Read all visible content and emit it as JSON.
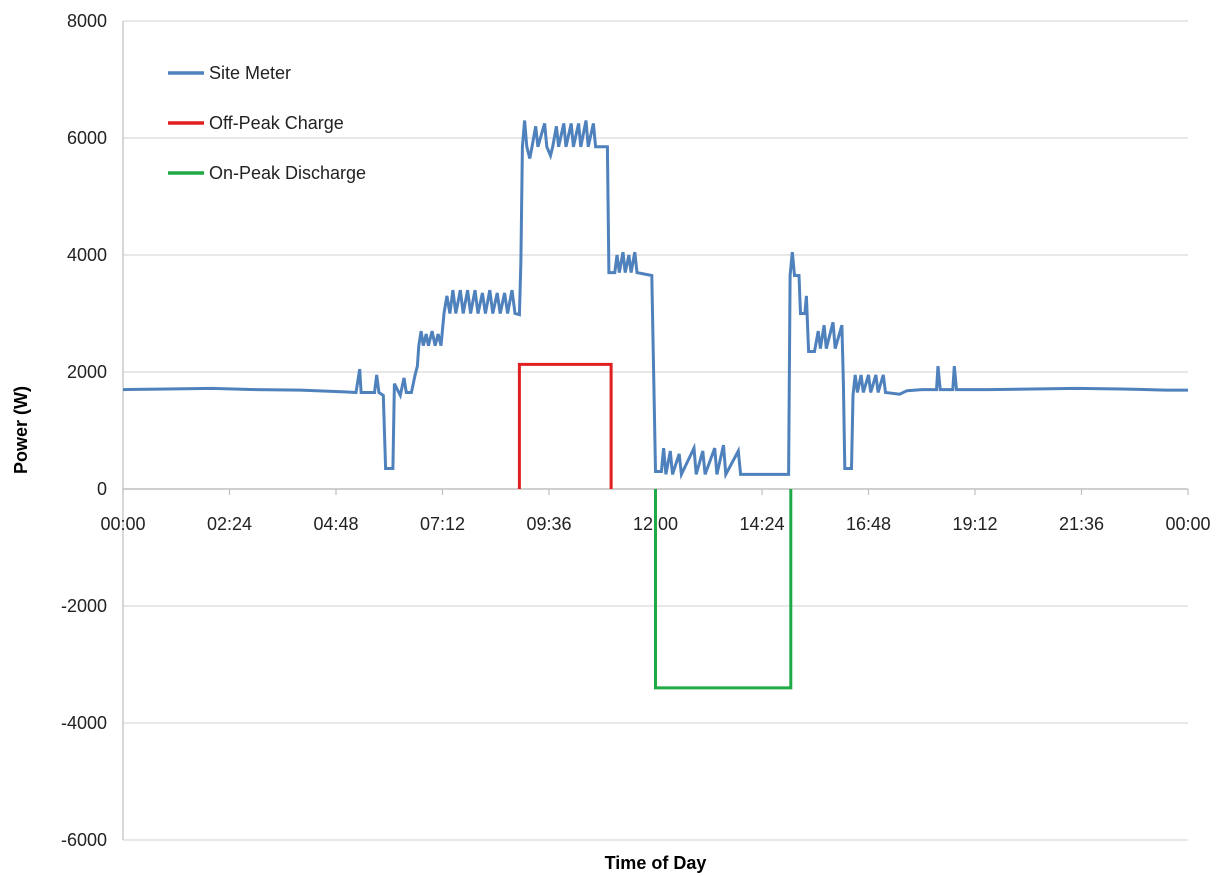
{
  "chart_data": {
    "type": "line",
    "title": "",
    "xlabel": "Time of Day",
    "ylabel": "Power (W)",
    "xlim": [
      "00:00",
      "24:00"
    ],
    "ylim": [
      -6000,
      8000
    ],
    "x_ticks": [
      "00:00",
      "02:24",
      "04:48",
      "07:12",
      "09:36",
      "12:00",
      "14:24",
      "16:48",
      "19:12",
      "21:36",
      "00:00"
    ],
    "y_ticks": [
      8000,
      6000,
      4000,
      2000,
      0,
      -2000,
      -4000,
      -6000
    ],
    "grid": true,
    "legend": "top-left",
    "series": [
      {
        "name": "Site Meter",
        "color": "#4f81bd",
        "points": [
          [
            "00:00",
            1700
          ],
          [
            "01:00",
            1710
          ],
          [
            "02:00",
            1720
          ],
          [
            "03:00",
            1700
          ],
          [
            "04:00",
            1690
          ],
          [
            "05:00",
            1660
          ],
          [
            "05:15",
            1650
          ],
          [
            "05:20",
            2050
          ],
          [
            "05:22",
            1650
          ],
          [
            "05:40",
            1650
          ],
          [
            "05:43",
            1950
          ],
          [
            "05:46",
            1650
          ],
          [
            "05:52",
            1600
          ],
          [
            "05:55",
            350
          ],
          [
            "06:05",
            350
          ],
          [
            "06:07",
            1800
          ],
          [
            "06:15",
            1600
          ],
          [
            "06:20",
            1900
          ],
          [
            "06:23",
            1650
          ],
          [
            "06:30",
            1650
          ],
          [
            "06:35",
            1950
          ],
          [
            "06:38",
            2100
          ],
          [
            "06:40",
            2450
          ],
          [
            "06:43",
            2700
          ],
          [
            "06:46",
            2450
          ],
          [
            "06:50",
            2650
          ],
          [
            "06:53",
            2450
          ],
          [
            "06:58",
            2700
          ],
          [
            "07:02",
            2450
          ],
          [
            "07:06",
            2650
          ],
          [
            "07:10",
            2450
          ],
          [
            "07:14",
            3000
          ],
          [
            "07:18",
            3300
          ],
          [
            "07:22",
            3000
          ],
          [
            "07:26",
            3400
          ],
          [
            "07:30",
            3000
          ],
          [
            "07:36",
            3400
          ],
          [
            "07:40",
            3000
          ],
          [
            "07:46",
            3400
          ],
          [
            "07:50",
            3000
          ],
          [
            "07:56",
            3400
          ],
          [
            "08:00",
            3000
          ],
          [
            "08:06",
            3350
          ],
          [
            "08:10",
            3000
          ],
          [
            "08:16",
            3400
          ],
          [
            "08:20",
            3000
          ],
          [
            "08:26",
            3350
          ],
          [
            "08:30",
            3000
          ],
          [
            "08:36",
            3350
          ],
          [
            "08:40",
            3000
          ],
          [
            "08:46",
            3400
          ],
          [
            "08:50",
            3000
          ],
          [
            "08:56",
            2980
          ],
          [
            "08:58",
            3900
          ],
          [
            "09:00",
            5850
          ],
          [
            "09:03",
            6300
          ],
          [
            "09:06",
            5850
          ],
          [
            "09:10",
            5650
          ],
          [
            "09:13",
            5850
          ],
          [
            "09:18",
            6200
          ],
          [
            "09:21",
            5850
          ],
          [
            "09:30",
            6250
          ],
          [
            "09:33",
            5850
          ],
          [
            "09:38",
            5700
          ],
          [
            "09:41",
            5850
          ],
          [
            "09:46",
            6200
          ],
          [
            "09:49",
            5850
          ],
          [
            "09:56",
            6250
          ],
          [
            "09:59",
            5850
          ],
          [
            "10:06",
            6250
          ],
          [
            "10:09",
            5850
          ],
          [
            "10:16",
            6250
          ],
          [
            "10:19",
            5850
          ],
          [
            "10:26",
            6300
          ],
          [
            "10:29",
            5850
          ],
          [
            "10:36",
            6250
          ],
          [
            "10:39",
            5850
          ],
          [
            "10:55",
            5850
          ],
          [
            "10:57",
            3700
          ],
          [
            "11:05",
            3700
          ],
          [
            "11:08",
            4000
          ],
          [
            "11:11",
            3700
          ],
          [
            "11:16",
            4050
          ],
          [
            "11:19",
            3700
          ],
          [
            "11:24",
            4000
          ],
          [
            "11:27",
            3700
          ],
          [
            "11:32",
            4050
          ],
          [
            "11:35",
            3700
          ],
          [
            "11:55",
            3650
          ],
          [
            "12:00",
            300
          ],
          [
            "12:08",
            300
          ],
          [
            "12:11",
            700
          ],
          [
            "12:14",
            250
          ],
          [
            "12:20",
            650
          ],
          [
            "12:23",
            250
          ],
          [
            "12:32",
            600
          ],
          [
            "12:35",
            250
          ],
          [
            "12:52",
            700
          ],
          [
            "12:55",
            250
          ],
          [
            "13:04",
            650
          ],
          [
            "13:07",
            250
          ],
          [
            "13:20",
            700
          ],
          [
            "13:23",
            250
          ],
          [
            "13:32",
            750
          ],
          [
            "13:35",
            250
          ],
          [
            "13:52",
            650
          ],
          [
            "13:55",
            250
          ],
          [
            "15:00",
            250
          ],
          [
            "15:02",
            3650
          ],
          [
            "15:05",
            4050
          ],
          [
            "15:08",
            3650
          ],
          [
            "15:14",
            3650
          ],
          [
            "15:16",
            3000
          ],
          [
            "15:22",
            3000
          ],
          [
            "15:24",
            3300
          ],
          [
            "15:27",
            2350
          ],
          [
            "15:35",
            2350
          ],
          [
            "15:40",
            2700
          ],
          [
            "15:43",
            2400
          ],
          [
            "15:48",
            2800
          ],
          [
            "15:51",
            2400
          ],
          [
            "16:00",
            2850
          ],
          [
            "16:03",
            2400
          ],
          [
            "16:12",
            2800
          ],
          [
            "16:14",
            1800
          ],
          [
            "16:16",
            350
          ],
          [
            "16:25",
            350
          ],
          [
            "16:27",
            1600
          ],
          [
            "16:30",
            1950
          ],
          [
            "16:33",
            1650
          ],
          [
            "16:38",
            1950
          ],
          [
            "16:41",
            1650
          ],
          [
            "16:48",
            1950
          ],
          [
            "16:51",
            1650
          ],
          [
            "16:58",
            1950
          ],
          [
            "17:01",
            1650
          ],
          [
            "17:08",
            1950
          ],
          [
            "17:11",
            1650
          ],
          [
            "17:30",
            1620
          ],
          [
            "17:40",
            1680
          ],
          [
            "18:00",
            1700
          ],
          [
            "18:20",
            1700
          ],
          [
            "18:22",
            2100
          ],
          [
            "18:25",
            1700
          ],
          [
            "18:42",
            1700
          ],
          [
            "18:44",
            2100
          ],
          [
            "18:47",
            1700
          ],
          [
            "19:30",
            1700
          ],
          [
            "20:30",
            1710
          ],
          [
            "21:30",
            1720
          ],
          [
            "22:30",
            1710
          ],
          [
            "23:30",
            1690
          ],
          [
            "24:00",
            1690
          ]
        ]
      },
      {
        "name": "Off-Peak Charge",
        "color": "#e02020",
        "points": [
          [
            "08:56",
            0
          ],
          [
            "08:56",
            2130
          ],
          [
            "11:00",
            2130
          ],
          [
            "11:00",
            0
          ]
        ]
      },
      {
        "name": "On-Peak Discharge",
        "color": "#1faa45",
        "points": [
          [
            "12:00",
            0
          ],
          [
            "12:00",
            -3400
          ],
          [
            "15:03",
            -3400
          ],
          [
            "15:03",
            0
          ]
        ]
      }
    ]
  }
}
